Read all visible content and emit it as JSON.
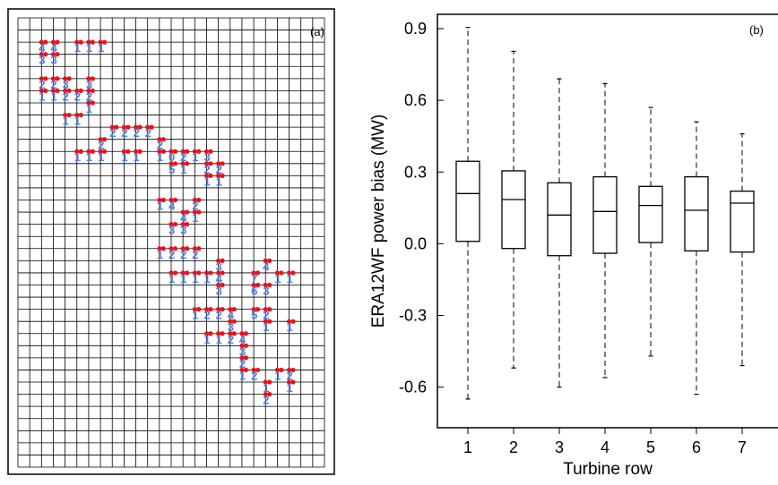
{
  "left_panel": {
    "label": "(a)",
    "markers": [
      {
        "t": "4",
        "r": 2,
        "c": 2
      },
      {
        "t": "4",
        "r": 2,
        "c": 3
      },
      {
        "t": "1",
        "r": 2,
        "c": 5
      },
      {
        "t": "1",
        "r": 2,
        "c": 6
      },
      {
        "t": "1",
        "r": 2,
        "c": 7
      },
      {
        "t": "3",
        "r": 3,
        "c": 2
      },
      {
        "t": "3",
        "r": 3,
        "c": 3
      },
      {
        "t": "2",
        "r": 5,
        "c": 2
      },
      {
        "t": "2",
        "r": 5,
        "c": 3
      },
      {
        "t": "3",
        "r": 5,
        "c": 4
      },
      {
        "t": "3",
        "r": 5,
        "c": 6
      },
      {
        "t": "1",
        "r": 6,
        "c": 2
      },
      {
        "t": "1",
        "r": 6,
        "c": 3
      },
      {
        "t": "2",
        "r": 6,
        "c": 4
      },
      {
        "t": "2",
        "r": 6,
        "c": 5
      },
      {
        "t": "2",
        "r": 6,
        "c": 6
      },
      {
        "t": "1",
        "r": 7,
        "c": 6
      },
      {
        "t": "1",
        "r": 8,
        "c": 4
      },
      {
        "t": "1",
        "r": 8,
        "c": 5
      },
      {
        "t": "2",
        "r": 9,
        "c": 8
      },
      {
        "t": "2",
        "r": 9,
        "c": 9
      },
      {
        "t": "2",
        "r": 9,
        "c": 10
      },
      {
        "t": "2",
        "r": 9,
        "c": 11
      },
      {
        "t": "2",
        "r": 10,
        "c": 7
      },
      {
        "t": "2",
        "r": 10,
        "c": 12
      },
      {
        "t": "1",
        "r": 11,
        "c": 5
      },
      {
        "t": "1",
        "r": 11,
        "c": 6
      },
      {
        "t": "1",
        "r": 11,
        "c": 7
      },
      {
        "t": "1",
        "r": 11,
        "c": 9
      },
      {
        "t": "1",
        "r": 11,
        "c": 10
      },
      {
        "t": "1",
        "r": 11,
        "c": 12
      },
      {
        "t": "0",
        "r": 11,
        "c": 13
      },
      {
        "t": "2",
        "r": 11,
        "c": 14
      },
      {
        "t": "1",
        "r": 11,
        "c": 15
      },
      {
        "t": "3",
        "r": 11,
        "c": 16
      },
      {
        "t": "5",
        "r": 12,
        "c": 13
      },
      {
        "t": "1",
        "r": 12,
        "c": 14
      },
      {
        "t": "2",
        "r": 12,
        "c": 16
      },
      {
        "t": "2",
        "r": 12,
        "c": 17
      },
      {
        "t": "1",
        "r": 13,
        "c": 16
      },
      {
        "t": "1",
        "r": 13,
        "c": 17
      },
      {
        "t": "2",
        "r": 15,
        "c": 15
      },
      {
        "t": "1",
        "r": 15,
        "c": 12
      },
      {
        "t": "4",
        "r": 15,
        "c": 13
      },
      {
        "t": "4",
        "r": 16,
        "c": 14
      },
      {
        "t": "1",
        "r": 16,
        "c": 15
      },
      {
        "t": "3",
        "r": 17,
        "c": 13
      },
      {
        "t": "3",
        "r": 17,
        "c": 14
      },
      {
        "t": "1",
        "r": 19,
        "c": 12
      },
      {
        "t": "2",
        "r": 19,
        "c": 13
      },
      {
        "t": "2",
        "r": 19,
        "c": 14
      },
      {
        "t": "2",
        "r": 19,
        "c": 15
      },
      {
        "t": "3",
        "r": 20,
        "c": 17
      },
      {
        "t": "4",
        "r": 20,
        "c": 21
      },
      {
        "t": "1",
        "r": 21,
        "c": 13
      },
      {
        "t": "1",
        "r": 21,
        "c": 14
      },
      {
        "t": "1",
        "r": 21,
        "c": 15
      },
      {
        "t": "1",
        "r": 21,
        "c": 16
      },
      {
        "t": "4",
        "r": 21,
        "c": 17
      },
      {
        "t": "7",
        "r": 21,
        "c": 20
      },
      {
        "t": "1",
        "r": 21,
        "c": 22
      },
      {
        "t": "1",
        "r": 21,
        "c": 23
      },
      {
        "t": "3",
        "r": 22,
        "c": 17
      },
      {
        "t": "6",
        "r": 22,
        "c": 20
      },
      {
        "t": "3",
        "r": 22,
        "c": 21
      },
      {
        "t": "1",
        "r": 24,
        "c": 15
      },
      {
        "t": "2",
        "r": 24,
        "c": 16
      },
      {
        "t": "2",
        "r": 24,
        "c": 17
      },
      {
        "t": "4",
        "r": 24,
        "c": 18
      },
      {
        "t": "5",
        "r": 24,
        "c": 20
      },
      {
        "t": "2",
        "r": 24,
        "c": 21
      },
      {
        "t": "3",
        "r": 25,
        "c": 18
      },
      {
        "t": "1",
        "r": 25,
        "c": 21
      },
      {
        "t": "1",
        "r": 25,
        "c": 23
      },
      {
        "t": "1",
        "r": 26,
        "c": 16
      },
      {
        "t": "1",
        "r": 26,
        "c": 17
      },
      {
        "t": "2",
        "r": 26,
        "c": 18
      },
      {
        "t": "4",
        "r": 26,
        "c": 19
      },
      {
        "t": "3",
        "r": 27,
        "c": 19
      },
      {
        "t": "2",
        "r": 28,
        "c": 19
      },
      {
        "t": "1",
        "r": 29,
        "c": 19
      },
      {
        "t": "2",
        "r": 29,
        "c": 20
      },
      {
        "t": "1",
        "r": 29,
        "c": 22
      },
      {
        "t": "2",
        "r": 29,
        "c": 23
      },
      {
        "t": "1",
        "r": 30,
        "c": 21
      },
      {
        "t": "1",
        "r": 30,
        "c": 23
      },
      {
        "t": "2",
        "r": 31,
        "c": 21
      }
    ]
  },
  "chart_data": {
    "type": "box",
    "panel_label": "(b)",
    "xlabel": "Turbine row",
    "ylabel": "ERA12WF power bias (MW)",
    "ylim": [
      -0.77,
      0.96
    ],
    "yticks": [
      -0.6,
      -0.3,
      0.0,
      0.3,
      0.6,
      0.9
    ],
    "ytick_labels": [
      "-0.6",
      "-0.3",
      "0.0",
      "0.3",
      "0.6",
      "0.9"
    ],
    "categories": [
      "1",
      "2",
      "3",
      "4",
      "5",
      "6",
      "7"
    ],
    "boxes": [
      {
        "min": -0.65,
        "q1": 0.01,
        "median": 0.21,
        "q3": 0.345,
        "max": 0.905
      },
      {
        "min": -0.52,
        "q1": -0.02,
        "median": 0.185,
        "q3": 0.305,
        "max": 0.805
      },
      {
        "min": -0.6,
        "q1": -0.05,
        "median": 0.12,
        "q3": 0.255,
        "max": 0.69
      },
      {
        "min": -0.56,
        "q1": -0.04,
        "median": 0.135,
        "q3": 0.28,
        "max": 0.67
      },
      {
        "min": -0.47,
        "q1": 0.005,
        "median": 0.16,
        "q3": 0.24,
        "max": 0.57
      },
      {
        "min": -0.63,
        "q1": -0.03,
        "median": 0.14,
        "q3": 0.28,
        "max": 0.51
      },
      {
        "min": -0.51,
        "q1": -0.035,
        "median": 0.17,
        "q3": 0.22,
        "max": 0.46
      }
    ]
  }
}
